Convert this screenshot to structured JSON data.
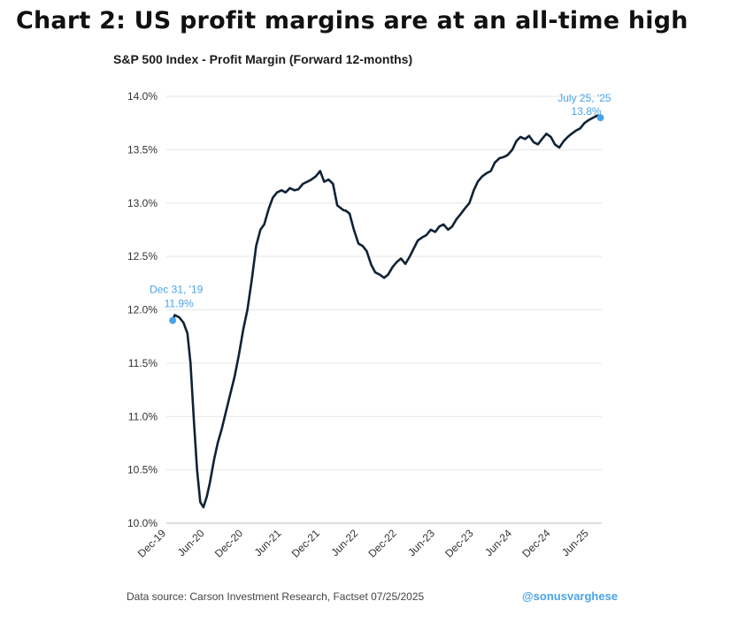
{
  "page": {
    "headline": "Chart 2: US profit margins are at an all-time high",
    "source": "Data source: Carson Investment Research, Factset   07/25/2025",
    "handle": "@sonusvarghese"
  },
  "chart_data": {
    "type": "line",
    "title": "S&P 500 Index - Profit Margin (Forward 12-months)",
    "xlabel": "",
    "ylabel": "",
    "ylim": [
      10.0,
      14.0
    ],
    "xlim": [
      "2019-12-01",
      "2025-07-31"
    ],
    "yticks": [
      "10.0%",
      "10.5%",
      "11.0%",
      "11.5%",
      "12.0%",
      "12.5%",
      "13.0%",
      "13.5%",
      "14.0%"
    ],
    "ytick_values": [
      10.0,
      10.5,
      11.0,
      11.5,
      12.0,
      12.5,
      13.0,
      13.5,
      14.0
    ],
    "xticks": [
      "Dec-19",
      "Jun-20",
      "Dec-20",
      "Jun-21",
      "Dec-21",
      "Jun-22",
      "Dec-22",
      "Jun-23",
      "Dec-23",
      "Jun-24",
      "Dec-24",
      "Jun-25"
    ],
    "xtick_dates": [
      "2019-12-01",
      "2020-06-01",
      "2020-12-01",
      "2021-06-01",
      "2021-12-01",
      "2022-06-01",
      "2022-12-01",
      "2023-06-01",
      "2023-12-01",
      "2024-06-01",
      "2024-12-01",
      "2025-06-01"
    ],
    "grid": "horizontal",
    "line_color": "#0f2236",
    "annotation_color": "#4aa3e8",
    "series": [
      {
        "x": [
          "2019-12-31",
          "2020-01-10",
          "2020-01-31",
          "2020-02-20",
          "2020-03-10",
          "2020-03-25",
          "2020-04-10",
          "2020-04-25",
          "2020-05-10",
          "2020-05-25",
          "2020-06-10",
          "2020-06-25",
          "2020-07-15",
          "2020-08-01",
          "2020-08-20",
          "2020-09-10",
          "2020-10-01",
          "2020-10-20",
          "2020-11-10",
          "2020-12-01",
          "2020-12-20",
          "2021-01-10",
          "2021-01-31",
          "2021-02-20",
          "2021-03-10",
          "2021-04-01",
          "2021-04-20",
          "2021-05-10",
          "2021-05-31",
          "2021-06-20",
          "2021-07-10",
          "2021-08-01",
          "2021-08-20",
          "2021-09-10",
          "2021-10-01",
          "2021-10-20",
          "2021-11-10",
          "2021-12-01",
          "2021-12-20",
          "2022-01-10",
          "2022-01-31",
          "2022-02-20",
          "2022-03-10",
          "2022-03-25",
          "2022-04-01",
          "2022-04-20",
          "2022-05-10",
          "2022-06-01",
          "2022-06-20",
          "2022-07-10",
          "2022-08-01",
          "2022-08-20",
          "2022-09-10",
          "2022-10-01",
          "2022-10-20",
          "2022-11-10",
          "2022-12-01",
          "2022-12-20",
          "2023-01-10",
          "2023-01-31",
          "2023-02-20",
          "2023-03-10",
          "2023-04-01",
          "2023-04-20",
          "2023-05-10",
          "2023-06-01",
          "2023-06-20",
          "2023-07-10",
          "2023-08-01",
          "2023-08-20",
          "2023-09-10",
          "2023-10-01",
          "2023-10-20",
          "2023-11-10",
          "2023-12-01",
          "2023-12-20",
          "2024-01-10",
          "2024-01-31",
          "2024-02-20",
          "2024-03-10",
          "2024-04-01",
          "2024-04-20",
          "2024-05-10",
          "2024-06-01",
          "2024-06-20",
          "2024-07-10",
          "2024-08-01",
          "2024-08-20",
          "2024-09-10",
          "2024-10-01",
          "2024-10-20",
          "2024-11-10",
          "2024-12-01",
          "2024-12-20",
          "2025-01-10",
          "2025-01-31",
          "2025-02-20",
          "2025-03-10",
          "2025-04-01",
          "2025-04-20",
          "2025-05-10",
          "2025-06-01",
          "2025-06-20",
          "2025-07-10",
          "2025-07-25"
        ],
        "y": [
          11.9,
          11.95,
          11.93,
          11.88,
          11.78,
          11.5,
          10.95,
          10.5,
          10.2,
          10.15,
          10.25,
          10.38,
          10.6,
          10.75,
          10.88,
          11.05,
          11.22,
          11.37,
          11.58,
          11.82,
          12.0,
          12.28,
          12.6,
          12.75,
          12.8,
          12.95,
          13.05,
          13.1,
          13.12,
          13.1,
          13.14,
          13.12,
          13.13,
          13.18,
          13.2,
          13.22,
          13.25,
          13.3,
          13.2,
          13.22,
          13.18,
          12.98,
          12.95,
          12.93,
          12.93,
          12.9,
          12.75,
          12.62,
          12.6,
          12.55,
          12.42,
          12.35,
          12.33,
          12.3,
          12.33,
          12.4,
          12.45,
          12.48,
          12.43,
          12.5,
          12.58,
          12.65,
          12.68,
          12.7,
          12.75,
          12.73,
          12.78,
          12.8,
          12.75,
          12.78,
          12.85,
          12.9,
          12.95,
          13.0,
          13.12,
          13.2,
          13.25,
          13.28,
          13.3,
          13.38,
          13.42,
          13.43,
          13.45,
          13.5,
          13.58,
          13.62,
          13.6,
          13.63,
          13.57,
          13.55,
          13.6,
          13.65,
          13.62,
          13.55,
          13.52,
          13.58,
          13.62,
          13.65,
          13.68,
          13.7,
          13.75,
          13.78,
          13.8,
          13.82,
          13.8
        ]
      }
    ],
    "annotations": [
      {
        "date_label": "Dec 31, '19",
        "value_label": "11.9%",
        "x": "2019-12-31",
        "y": 11.9
      },
      {
        "date_label": "July 25, '25",
        "value_label": "13.8%",
        "x": "2025-07-25",
        "y": 13.8
      }
    ]
  }
}
